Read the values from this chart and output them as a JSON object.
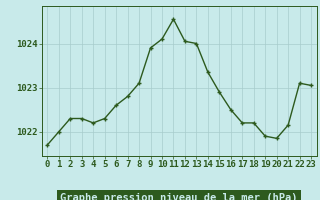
{
  "x": [
    0,
    1,
    2,
    3,
    4,
    5,
    6,
    7,
    8,
    9,
    10,
    11,
    12,
    13,
    14,
    15,
    16,
    17,
    18,
    19,
    20,
    21,
    22,
    23
  ],
  "y": [
    1021.7,
    1022.0,
    1022.3,
    1022.3,
    1022.2,
    1022.3,
    1022.6,
    1022.8,
    1023.1,
    1023.9,
    1024.1,
    1024.55,
    1024.05,
    1024.0,
    1023.35,
    1022.9,
    1022.5,
    1022.2,
    1022.2,
    1021.9,
    1021.85,
    1022.15,
    1023.1,
    1023.05
  ],
  "line_color": "#2d5a1e",
  "marker_color": "#2d5a1e",
  "bg_color": "#c8eaea",
  "grid_color": "#a8cccc",
  "xlabel": "Graphe pression niveau de la mer (hPa)",
  "xlabel_fontsize": 7.5,
  "xlabel_bg": "#2d5a1e",
  "xlabel_fg": "#c8eaea",
  "ytick_labels": [
    "1022",
    "1023",
    "1024"
  ],
  "ytick_values": [
    1022,
    1023,
    1024
  ],
  "ylim": [
    1021.45,
    1024.85
  ],
  "xlim": [
    -0.5,
    23.5
  ],
  "xtick_labels": [
    "0",
    "1",
    "2",
    "3",
    "4",
    "5",
    "6",
    "7",
    "8",
    "9",
    "10",
    "11",
    "12",
    "13",
    "14",
    "15",
    "16",
    "17",
    "18",
    "19",
    "20",
    "21",
    "22",
    "23"
  ],
  "tick_fontsize": 6.5,
  "tick_color": "#2d5a1e",
  "border_color": "#888888",
  "spine_color": "#2d5a1e"
}
